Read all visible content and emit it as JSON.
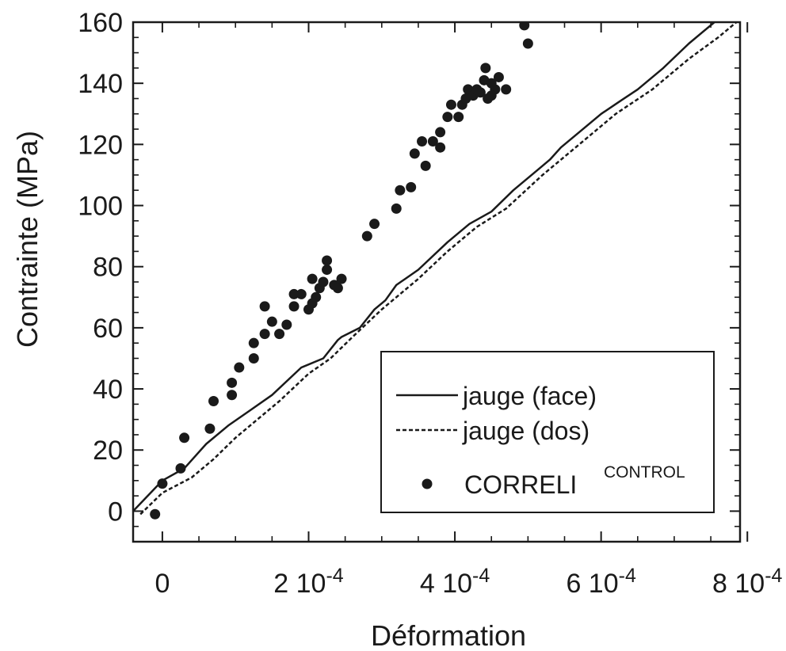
{
  "chart_data": {
    "type": "scatter",
    "xlabel": "Déformation",
    "ylabel": "Contrainte (MPa)",
    "xlim": [
      -4e-05,
      0.00079
    ],
    "ylim": [
      -10,
      160
    ],
    "grid": false,
    "legend_position": "bottom-right",
    "x_ticks": [
      {
        "value": 0,
        "label": "0"
      },
      {
        "value": 0.0002,
        "mant": "2 10",
        "exp": "-4"
      },
      {
        "value": 0.0004,
        "mant": "4 10",
        "exp": "-4"
      },
      {
        "value": 0.0006,
        "mant": "6 10",
        "exp": "-4"
      },
      {
        "value": 0.0008,
        "mant": "8 10",
        "exp": "-4"
      }
    ],
    "y_ticks": [
      {
        "value": 0,
        "label": "0"
      },
      {
        "value": 20,
        "label": "20"
      },
      {
        "value": 40,
        "label": "40"
      },
      {
        "value": 60,
        "label": "60"
      },
      {
        "value": 80,
        "label": "80"
      },
      {
        "value": 100,
        "label": "100"
      },
      {
        "value": 120,
        "label": "120"
      },
      {
        "value": 140,
        "label": "140"
      },
      {
        "value": 160,
        "label": "160"
      }
    ],
    "legend": {
      "face": "jauge (face)",
      "dos": "jauge (dos)",
      "correli_main": "CORRELI",
      "correli_sup": "CONTROL"
    },
    "series": [
      {
        "name": "jauge (face)",
        "style": "solid",
        "points": [
          [
            -4e-05,
            0
          ],
          [
            0.0,
            10
          ],
          [
            3e-05,
            14
          ],
          [
            6e-05,
            22
          ],
          [
            9e-05,
            28
          ],
          [
            0.00012,
            33
          ],
          [
            0.00015,
            38
          ],
          [
            0.00019,
            47
          ],
          [
            0.00022,
            50
          ],
          [
            0.00024,
            56
          ],
          [
            0.000245,
            57
          ],
          [
            0.00027,
            60
          ],
          [
            0.00029,
            66
          ],
          [
            0.000305,
            69
          ],
          [
            0.00032,
            74
          ],
          [
            0.00035,
            79
          ],
          [
            0.00039,
            88
          ],
          [
            0.00042,
            94
          ],
          [
            0.00045,
            98
          ],
          [
            0.00048,
            105
          ],
          [
            0.000515,
            112
          ],
          [
            0.00053,
            115
          ],
          [
            0.000545,
            119
          ],
          [
            0.00057,
            124
          ],
          [
            0.0006,
            130
          ],
          [
            0.000625,
            134
          ],
          [
            0.00065,
            138
          ],
          [
            0.000685,
            145
          ],
          [
            0.00072,
            153
          ],
          [
            0.000755,
            160
          ]
        ]
      },
      {
        "name": "jauge (dos)",
        "style": "dashed",
        "points": [
          [
            -3e-05,
            -1
          ],
          [
            0.0,
            6
          ],
          [
            4e-05,
            11
          ],
          [
            7e-05,
            17
          ],
          [
            0.0001,
            24
          ],
          [
            0.00013,
            30
          ],
          [
            0.00016,
            36
          ],
          [
            0.0002,
            45
          ],
          [
            0.00023,
            50
          ],
          [
            0.00026,
            57
          ],
          [
            0.0003,
            66
          ],
          [
            0.00035,
            76
          ],
          [
            0.00039,
            85
          ],
          [
            0.00043,
            93
          ],
          [
            0.00047,
            99
          ],
          [
            0.00052,
            110
          ],
          [
            0.00057,
            120
          ],
          [
            0.00062,
            130
          ],
          [
            0.00067,
            138
          ],
          [
            0.00072,
            148
          ],
          [
            0.00076,
            155
          ],
          [
            0.000785,
            160
          ]
        ]
      },
      {
        "name": "CORRELI CONTROL",
        "style": "markers",
        "points": [
          [
            0.0,
            9
          ],
          [
            -1e-05,
            -1
          ],
          [
            2.5e-05,
            14
          ],
          [
            3e-05,
            24
          ],
          [
            6.5e-05,
            27
          ],
          [
            7e-05,
            36
          ],
          [
            9.5e-05,
            38
          ],
          [
            9.5e-05,
            42
          ],
          [
            0.000105,
            47
          ],
          [
            0.000125,
            50
          ],
          [
            0.000125,
            55
          ],
          [
            0.00014,
            58
          ],
          [
            0.00015,
            62
          ],
          [
            0.00014,
            67
          ],
          [
            0.00016,
            58
          ],
          [
            0.00017,
            61
          ],
          [
            0.00018,
            67
          ],
          [
            0.00018,
            71
          ],
          [
            0.00019,
            71
          ],
          [
            0.0002,
            66
          ],
          [
            0.000205,
            68
          ],
          [
            0.00021,
            70
          ],
          [
            0.000215,
            73
          ],
          [
            0.000205,
            76
          ],
          [
            0.00022,
            75
          ],
          [
            0.000225,
            79
          ],
          [
            0.000225,
            82
          ],
          [
            0.000235,
            74
          ],
          [
            0.000245,
            76
          ],
          [
            0.00024,
            73
          ],
          [
            0.00028,
            90
          ],
          [
            0.00029,
            94
          ],
          [
            0.00032,
            99
          ],
          [
            0.000325,
            105
          ],
          [
            0.00034,
            106
          ],
          [
            0.000345,
            117
          ],
          [
            0.000355,
            121
          ],
          [
            0.00036,
            113
          ],
          [
            0.00037,
            121
          ],
          [
            0.00038,
            119
          ],
          [
            0.00038,
            124
          ],
          [
            0.00039,
            129
          ],
          [
            0.000395,
            133
          ],
          [
            0.000405,
            129
          ],
          [
            0.00041,
            133
          ],
          [
            0.000415,
            135
          ],
          [
            0.000418,
            138
          ],
          [
            0.000425,
            136
          ],
          [
            0.00043,
            138
          ],
          [
            0.000435,
            137
          ],
          [
            0.00044,
            141
          ],
          [
            0.000442,
            145
          ],
          [
            0.00045,
            140
          ],
          [
            0.000455,
            138
          ],
          [
            0.000445,
            135
          ],
          [
            0.00046,
            142
          ],
          [
            0.00047,
            138
          ],
          [
            0.000495,
            159
          ],
          [
            0.0005,
            153
          ],
          [
            0.00045,
            136
          ]
        ]
      }
    ]
  }
}
